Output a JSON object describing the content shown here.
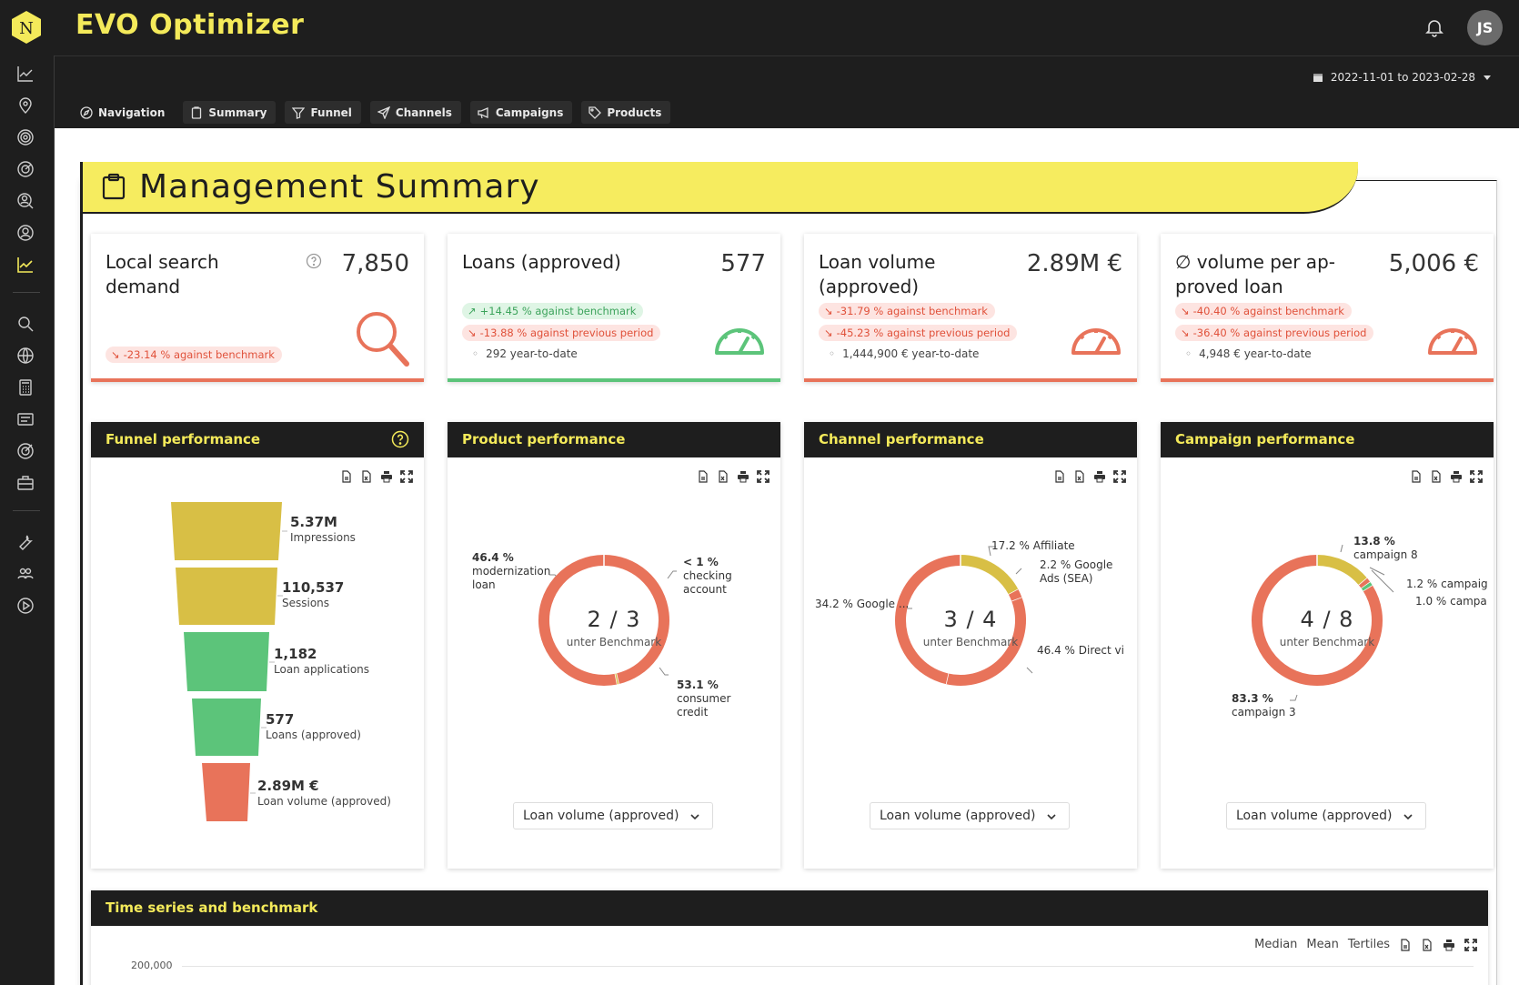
{
  "app": {
    "title": "EVO Optimizer",
    "logo_letter": "N",
    "avatar_initials": "JS",
    "accent": "#f4ea5a",
    "dark": "#1e1e1e"
  },
  "header": {
    "date_range": "2022-11-01 to 2023-02-28"
  },
  "tabs": [
    {
      "label": "Navigation",
      "icon": "compass-icon"
    },
    {
      "label": "Summary",
      "icon": "clipboard-icon"
    },
    {
      "label": "Funnel",
      "icon": "filter-icon"
    },
    {
      "label": "Channels",
      "icon": "send-icon"
    },
    {
      "label": "Campaigns",
      "icon": "megaphone-icon"
    },
    {
      "label": "Products",
      "icon": "tag-icon"
    }
  ],
  "rail_icons": [
    "chart-line-icon",
    "map-pin-icon",
    "target-icon",
    "radar-icon",
    "user-search-icon",
    "user-circle-icon",
    "trending-icon",
    "search-icon",
    "globe-icon",
    "calculator-icon",
    "list-icon",
    "goal-icon",
    "briefcase-icon",
    "wrench-icon",
    "team-icon",
    "play-icon"
  ],
  "page_title": "Management Summary",
  "kpis": [
    {
      "label": "Local search demand",
      "value": "7,850",
      "pills": [
        {
          "text": "-23.14 % against benchmark",
          "tone": "red"
        }
      ],
      "ytd": "",
      "status": "red",
      "icon": "magnifier-icon"
    },
    {
      "label": "Loans (approved)",
      "value": "577",
      "pills": [
        {
          "text": "+14.45 % against benchmark",
          "tone": "green"
        },
        {
          "text": "-13.88 % against previous period",
          "tone": "red"
        }
      ],
      "ytd": "292 year-to-date",
      "status": "green",
      "icon": "gauge-icon"
    },
    {
      "label": "Loan volume (approved)",
      "value": "2.89M €",
      "pills": [
        {
          "text": "-31.79 % against benchmark",
          "tone": "red"
        },
        {
          "text": "-45.23 % against previous period",
          "tone": "red"
        }
      ],
      "ytd": "1,444,900 € year-to-date",
      "status": "red",
      "icon": "gauge-icon"
    },
    {
      "label": "∅ volume per ap-proved loan",
      "value": "5,006 €",
      "pills": [
        {
          "text": "-40.40 % against benchmark",
          "tone": "red"
        },
        {
          "text": "-36.40 % against previous period",
          "tone": "red"
        }
      ],
      "ytd": "4,948 € year-to-date",
      "status": "red",
      "icon": "gauge-icon"
    }
  ],
  "cards": {
    "funnel": {
      "title": "Funnel performance",
      "stages": [
        {
          "value": "5.37M",
          "label": "Impressions",
          "status": "yellow"
        },
        {
          "value": "110,537",
          "label": "Sessions",
          "status": "yellow"
        },
        {
          "value": "1,182",
          "label": "Loan applications",
          "status": "green"
        },
        {
          "value": "577",
          "label": "Loans (approved)",
          "status": "green"
        },
        {
          "value": "2.89M €",
          "label": "Loan volume (approved)",
          "status": "red"
        }
      ]
    },
    "product": {
      "title": "Product performance",
      "center_fraction": "2 / 3",
      "center_sub": "unter Benchmark",
      "select_value": "Loan volume (approved)",
      "labels": [
        {
          "pct": "46.4 %",
          "name": "modernization loan"
        },
        {
          "pct": "< 1 %",
          "name": "checking account"
        },
        {
          "pct": "53.1 %",
          "name": "consumer credit"
        }
      ]
    },
    "channel": {
      "title": "Channel performance",
      "center_fraction": "3 / 4",
      "center_sub": "unter Benchmark",
      "select_value": "Loan volume (approved)",
      "labels": [
        {
          "text": "17.2 % Affiliate"
        },
        {
          "text": "2.2 % Google Ads (SEA)"
        },
        {
          "text": "34.2 % Google ..."
        },
        {
          "text": "46.4 % Direct vi"
        }
      ]
    },
    "campaign": {
      "title": "Campaign performance",
      "center_fraction": "4 / 8",
      "center_sub": "unter Benchmark",
      "select_value": "Loan volume (approved)",
      "labels": [
        {
          "pct": "13.8 %",
          "name": "campaign 8"
        },
        {
          "text": "1.2 % campaig"
        },
        {
          "text": "1.0 % campa"
        },
        {
          "pct": "83.3 %",
          "name": "campaign 3"
        }
      ]
    }
  },
  "chart_data": [
    {
      "type": "pie",
      "title": "Product performance",
      "categories": [
        "modernization loan",
        "checking account",
        "consumer credit"
      ],
      "values": [
        46.4,
        0.5,
        53.1
      ],
      "colors": [
        "#e8735a",
        "#d8bf45",
        "#e8735a"
      ]
    },
    {
      "type": "pie",
      "title": "Channel performance",
      "categories": [
        "Affiliate",
        "Google Ads (SEA)",
        "Google ...",
        "Direct vi"
      ],
      "values": [
        17.2,
        2.2,
        34.2,
        46.4
      ],
      "colors": [
        "#d8bf45",
        "#e8735a",
        "#e8735a",
        "#e8735a"
      ]
    },
    {
      "type": "pie",
      "title": "Campaign performance",
      "categories": [
        "campaign 8",
        "campaig",
        "campa",
        "campaign 3"
      ],
      "values": [
        13.8,
        1.2,
        1.0,
        83.3
      ],
      "colors": [
        "#d8bf45",
        "#e8735a",
        "#5cc47a",
        "#e8735a"
      ]
    }
  ],
  "timeseries": {
    "title": "Time series and benchmark",
    "toggles": [
      "Median",
      "Mean",
      "Tertiles"
    ],
    "y_tick": "200,000"
  },
  "colors": {
    "red": "#e8735a",
    "green": "#5cc47a",
    "yellow": "#d8bf45"
  }
}
